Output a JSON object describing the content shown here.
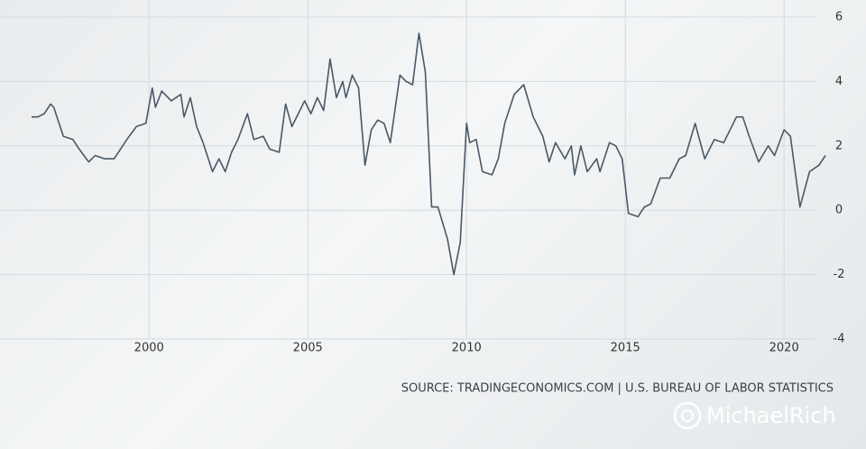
{
  "chart_data": {
    "type": "line",
    "source": "SOURCE: TRADINGECONOMICS.COM | U.S. BUREAU OF LABOR STATISTICS",
    "watermark": "MichaelRich",
    "x": [
      1996.3,
      1996.5,
      1996.7,
      1996.9,
      1997.0,
      1997.3,
      1997.6,
      1997.8,
      1998.1,
      1998.3,
      1998.6,
      1998.9,
      1999.1,
      1999.3,
      1999.6,
      1999.9,
      2000.1,
      2000.2,
      2000.4,
      2000.7,
      2001.0,
      2001.1,
      2001.3,
      2001.5,
      2001.7,
      2002.0,
      2002.2,
      2002.4,
      2002.6,
      2002.8,
      2003.1,
      2003.3,
      2003.6,
      2003.8,
      2004.1,
      2004.3,
      2004.5,
      2004.9,
      2005.1,
      2005.3,
      2005.5,
      2005.7,
      2005.9,
      2006.1,
      2006.2,
      2006.4,
      2006.6,
      2006.8,
      2007.0,
      2007.2,
      2007.4,
      2007.6,
      2007.9,
      2008.1,
      2008.3,
      2008.5,
      2008.7,
      2008.9,
      2009.1,
      2009.4,
      2009.6,
      2009.8,
      2010.0,
      2010.1,
      2010.3,
      2010.5,
      2010.8,
      2011.0,
      2011.2,
      2011.5,
      2011.8,
      2012.1,
      2012.4,
      2012.6,
      2012.8,
      2013.1,
      2013.3,
      2013.4,
      2013.6,
      2013.8,
      2014.1,
      2014.2,
      2014.5,
      2014.7,
      2014.9,
      2015.1,
      2015.4,
      2015.6,
      2015.8,
      2016.1,
      2016.4,
      2016.7,
      2016.9,
      2017.2,
      2017.5,
      2017.8,
      2018.1,
      2018.5,
      2018.7,
      2018.9,
      2019.2,
      2019.5,
      2019.7,
      2020.0,
      2020.2,
      2020.5,
      2020.8,
      2021.1,
      2021.3
    ],
    "series": [
      {
        "color": "#4a5866",
        "values": [
          2.9,
          2.9,
          3.0,
          3.3,
          3.2,
          2.3,
          2.2,
          1.9,
          1.5,
          1.7,
          1.6,
          1.6,
          1.9,
          2.2,
          2.6,
          2.7,
          3.8,
          3.2,
          3.7,
          3.4,
          3.6,
          2.9,
          3.5,
          2.6,
          2.1,
          1.2,
          1.6,
          1.2,
          1.8,
          2.2,
          3.0,
          2.2,
          2.3,
          1.9,
          1.8,
          3.3,
          2.6,
          3.4,
          3.0,
          3.5,
          3.1,
          4.7,
          3.5,
          4.0,
          3.5,
          4.2,
          3.8,
          1.4,
          2.5,
          2.8,
          2.7,
          2.1,
          4.2,
          4.0,
          3.9,
          5.5,
          4.3,
          0.1,
          0.1,
          -0.9,
          -2.0,
          -1.0,
          2.7,
          2.1,
          2.2,
          1.2,
          1.1,
          1.6,
          2.7,
          3.6,
          3.9,
          2.9,
          2.3,
          1.5,
          2.1,
          1.6,
          2.0,
          1.1,
          2.0,
          1.2,
          1.6,
          1.2,
          2.1,
          2.0,
          1.6,
          -0.1,
          -0.2,
          0.1,
          0.2,
          1.0,
          1.0,
          1.6,
          1.7,
          2.7,
          1.6,
          2.2,
          2.1,
          2.9,
          2.9,
          2.3,
          1.5,
          2.0,
          1.7,
          2.5,
          2.3,
          0.1,
          1.2,
          1.4,
          1.7
        ]
      }
    ],
    "xlim": [
      1996.3,
      2021.5
    ],
    "xticks": [
      2000,
      2005,
      2010,
      2015,
      2020
    ],
    "ylim": [
      -4,
      6
    ],
    "yticks": [
      -4,
      -2,
      0,
      2,
      4,
      6
    ],
    "grid": true
  }
}
